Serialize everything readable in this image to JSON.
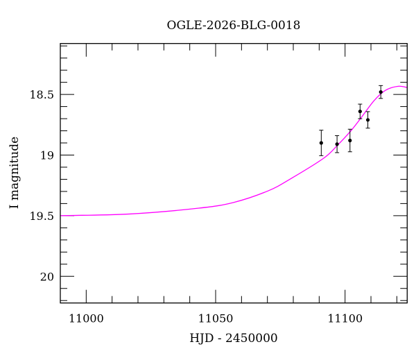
{
  "chart_data": {
    "type": "scatter",
    "title": "OGLE-2026-BLG-0018",
    "xlabel": "HJD - 2450000",
    "ylabel": "I magnitude",
    "xlim": [
      10990,
      11124
    ],
    "ylim": [
      20.22,
      18.08
    ],
    "y_inverted": true,
    "grid": false,
    "x_major_ticks": [
      11000,
      11050,
      11100
    ],
    "x_tick_labels": [
      "11000",
      "11050",
      "11100"
    ],
    "x_minor_step": 10,
    "y_major_ticks": [
      18.5,
      19,
      19.5,
      20
    ],
    "y_tick_labels": [
      "18.5",
      "19",
      "19.5",
      "20"
    ],
    "y_minor_step": 0.1,
    "series": [
      {
        "kind": "points_with_errorbars",
        "color": "#000000",
        "points": [
          {
            "x": 11090.8,
            "y": 18.9,
            "err": 0.105
          },
          {
            "x": 11096.9,
            "y": 18.91,
            "err": 0.07
          },
          {
            "x": 11101.9,
            "y": 18.88,
            "err": 0.093
          },
          {
            "x": 11105.8,
            "y": 18.64,
            "err": 0.06
          },
          {
            "x": 11108.8,
            "y": 18.71,
            "err": 0.068
          },
          {
            "x": 11113.8,
            "y": 18.48,
            "err": 0.053
          }
        ]
      },
      {
        "kind": "model_curve",
        "color": "#ff00ff",
        "x": [
          10990,
          11016.8,
          11043.5,
          11056.9,
          11070.3,
          11079.1,
          11091.6,
          11096.9,
          11101.9,
          11105.8,
          11111.2,
          11115.6,
          11120.5,
          11124
        ],
        "y": [
          19.5,
          19.486,
          19.438,
          19.391,
          19.295,
          19.194,
          19.028,
          18.923,
          18.809,
          18.704,
          18.551,
          18.466,
          18.433,
          18.443
        ]
      }
    ]
  }
}
